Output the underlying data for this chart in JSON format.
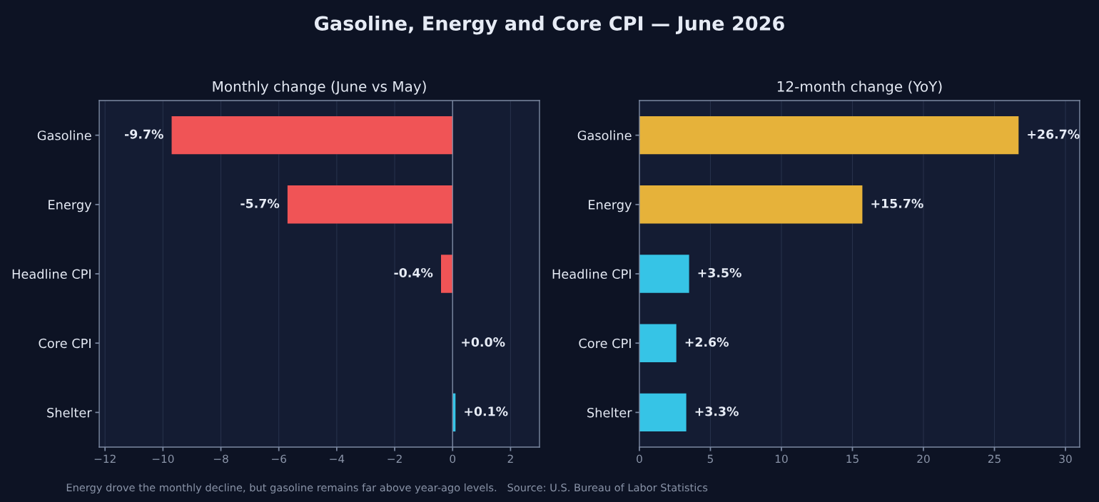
{
  "chart_data": [
    {
      "type": "other",
      "title": "Gasoline, Energy and Core CPI — June 2026",
      "annotations": [
        "Energy drove the monthly decline, but gasoline remains far above year-ago levels.   Source: U.S. Bureau of Labor Statistics"
      ]
    },
    {
      "type": "bar",
      "orientation": "horizontal",
      "title": "Monthly change (June vs May)",
      "categories": [
        "Gasoline",
        "Energy",
        "Headline CPI",
        "Core CPI",
        "Shelter"
      ],
      "values": [
        -9.7,
        -5.7,
        -0.4,
        0.0,
        0.1
      ],
      "colors": [
        "#f05456",
        "#f05456",
        "#f05456",
        "#36c4e6",
        "#36c4e6"
      ],
      "value_labels": [
        "-9.7%",
        "-5.7%",
        "-0.4%",
        "+0.0%",
        "+0.1%"
      ],
      "xlim": [
        -12.2,
        3.0
      ],
      "xticks": [
        {
          "value": -12,
          "label": "−12"
        },
        {
          "value": -10,
          "label": "−10"
        },
        {
          "value": -8,
          "label": "−8"
        },
        {
          "value": -6,
          "label": "−6"
        },
        {
          "value": -4,
          "label": "−4"
        },
        {
          "value": -2,
          "label": "−2"
        },
        0,
        2
      ],
      "grid": "x",
      "ref_lines": [
        {
          "axis": "x",
          "value": 0,
          "color": "#7d8aa3"
        }
      ]
    },
    {
      "type": "bar",
      "orientation": "horizontal",
      "title": "12-month change (YoY)",
      "categories": [
        "Gasoline",
        "Energy",
        "Headline CPI",
        "Core CPI",
        "Shelter"
      ],
      "values": [
        26.7,
        15.7,
        3.5,
        2.6,
        3.3
      ],
      "colors": [
        "#e6b23a",
        "#e6b23a",
        "#36c4e6",
        "#36c4e6",
        "#36c4e6"
      ],
      "value_labels": [
        "+26.7%",
        "+15.7%",
        "+3.5%",
        "+2.6%",
        "+3.3%"
      ],
      "xlim": [
        0,
        31
      ],
      "xticks": [
        0,
        5,
        10,
        15,
        20,
        25,
        30
      ],
      "grid": "x"
    }
  ]
}
